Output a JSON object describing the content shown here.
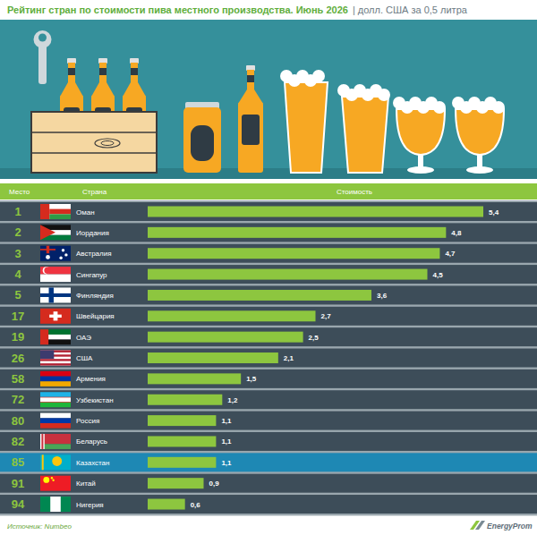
{
  "chart_data": {
    "type": "bar",
    "orientation": "horizontal",
    "title": "Рейтинг стран по стоимости пива местного производства. Июнь 2026",
    "subtitle": "| долл. США за 0,5 литра",
    "column_headers": [
      "Место",
      "Страна",
      "Стоимость"
    ],
    "ranks": [
      1,
      2,
      3,
      4,
      5,
      17,
      19,
      26,
      58,
      72,
      80,
      82,
      85,
      91,
      94
    ],
    "categories": [
      "Оман",
      "Иордания",
      "Австралия",
      "Сингапур",
      "Финляндия",
      "Швейцария",
      "ОАЭ",
      "США",
      "Армения",
      "Узбекистан",
      "Россия",
      "Беларусь",
      "Казахстан",
      "Китай",
      "Нигерия"
    ],
    "values": [
      5.4,
      4.8,
      4.7,
      4.5,
      3.6,
      2.7,
      2.5,
      2.1,
      1.5,
      1.2,
      1.1,
      1.1,
      1.1,
      0.9,
      0.6
    ],
    "value_labels": [
      "5,4",
      "4,8",
      "4,7",
      "4,5",
      "3,6",
      "2,7",
      "2,5",
      "2,1",
      "1,5",
      "1,2",
      "1,1",
      "1,1",
      "1,1",
      "0,9",
      "0,6"
    ],
    "xlim": [
      0,
      5.4
    ],
    "color": "#8dc63f",
    "data_labels": true,
    "tick_labels": false,
    "grid": false,
    "source": "Источник: Numbeo",
    "logo": "EnergyProm"
  }
}
